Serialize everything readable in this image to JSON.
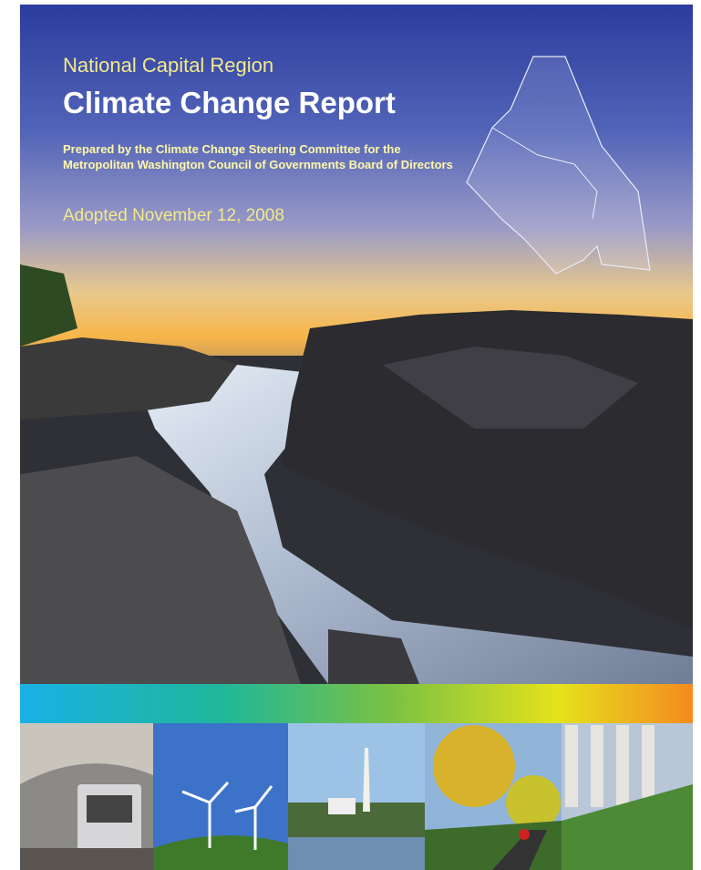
{
  "header": {
    "subtitle": "National Capital Region",
    "title": "Climate Change Report",
    "prepared_by": [
      "Prepared by the Climate Change Steering Committee for the",
      "Metropolitan Washington Council of Governments Board of Directors"
    ],
    "adopted": "Adopted November 12, 2008"
  }
}
